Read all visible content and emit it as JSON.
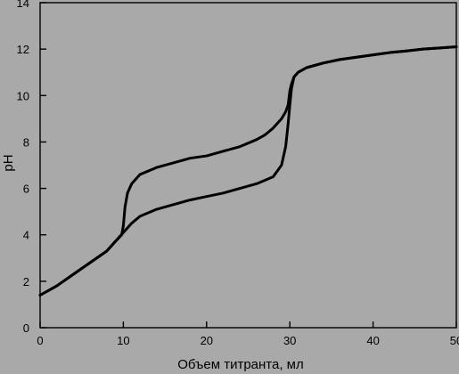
{
  "chart_data": {
    "type": "line",
    "xlabel": "Объем титранта, мл",
    "ylabel": "pH",
    "xlim": [
      0,
      50
    ],
    "ylim": [
      0,
      14
    ],
    "x_ticks": [
      "0",
      "10",
      "20",
      "30",
      "40",
      "50"
    ],
    "y_ticks": [
      "0",
      "2",
      "4",
      "6",
      "8",
      "10",
      "12",
      "14"
    ],
    "grid": false,
    "series": [
      {
        "x": [
          0,
          2,
          4,
          6,
          8,
          9,
          9.8,
          10,
          10.2,
          10.5,
          11,
          12,
          14,
          16,
          18,
          20,
          22,
          24,
          26,
          27,
          28,
          29,
          29.5,
          29.8,
          30,
          30.2,
          30.5,
          31,
          32,
          34,
          36,
          38,
          40,
          42,
          44,
          46,
          48,
          50
        ],
        "values": [
          1.4,
          1.8,
          2.3,
          2.8,
          3.3,
          3.7,
          4.0,
          4.4,
          5.2,
          5.8,
          6.2,
          6.6,
          6.9,
          7.1,
          7.3,
          7.4,
          7.6,
          7.8,
          8.1,
          8.3,
          8.6,
          9.0,
          9.3,
          9.6,
          10.2,
          10.5,
          10.8,
          11.0,
          11.2,
          11.4,
          11.55,
          11.65,
          11.75,
          11.85,
          11.92,
          12.0,
          12.05,
          12.1
        ]
      },
      {
        "x": [
          0,
          2,
          4,
          6,
          8,
          9,
          10,
          11,
          12,
          14,
          16,
          18,
          20,
          22,
          24,
          26,
          27,
          28,
          29,
          29.5,
          29.8,
          30,
          30.2,
          30.5,
          31,
          32,
          34,
          36,
          38,
          40,
          42,
          44,
          46,
          48,
          50
        ],
        "values": [
          1.4,
          1.8,
          2.3,
          2.8,
          3.3,
          3.7,
          4.1,
          4.5,
          4.8,
          5.1,
          5.3,
          5.5,
          5.65,
          5.8,
          6.0,
          6.2,
          6.35,
          6.5,
          7.0,
          7.8,
          8.8,
          9.6,
          10.3,
          10.8,
          11.0,
          11.2,
          11.4,
          11.55,
          11.65,
          11.75,
          11.85,
          11.92,
          12.0,
          12.05,
          12.1
        ]
      }
    ]
  }
}
